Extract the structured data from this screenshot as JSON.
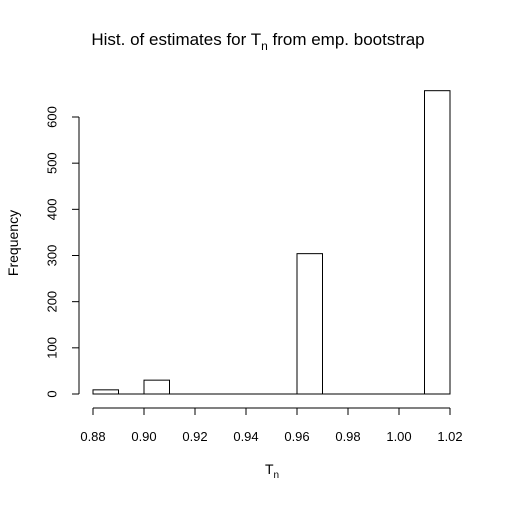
{
  "chart_data": {
    "type": "histogram",
    "title": {
      "prefix": "Hist. of estimates for T",
      "subscript": "n",
      "suffix": " from emp. bootstrap"
    },
    "xlabel": {
      "main": "T",
      "subscript": "n"
    },
    "ylabel": "Frequency",
    "xlim": [
      0.88,
      1.02
    ],
    "ylim": [
      0,
      660
    ],
    "x_ticks": [
      0.88,
      0.9,
      0.92,
      0.94,
      0.96,
      0.98,
      1.0,
      1.02
    ],
    "x_tick_labels": [
      "0.88",
      "0.90",
      "0.92",
      "0.94",
      "0.96",
      "0.98",
      "1.00",
      "1.02"
    ],
    "y_ticks": [
      0,
      100,
      200,
      300,
      400,
      500,
      600
    ],
    "y_tick_labels": [
      "0",
      "100",
      "200",
      "300",
      "400",
      "500",
      "600"
    ],
    "bin_width": 0.01,
    "bins": [
      {
        "x0": 0.88,
        "x1": 0.89,
        "count": 9
      },
      {
        "x0": 0.89,
        "x1": 0.9,
        "count": 0
      },
      {
        "x0": 0.9,
        "x1": 0.91,
        "count": 30
      },
      {
        "x0": 0.91,
        "x1": 0.92,
        "count": 0
      },
      {
        "x0": 0.92,
        "x1": 0.93,
        "count": 0
      },
      {
        "x0": 0.93,
        "x1": 0.94,
        "count": 0
      },
      {
        "x0": 0.94,
        "x1": 0.95,
        "count": 0
      },
      {
        "x0": 0.95,
        "x1": 0.96,
        "count": 0
      },
      {
        "x0": 0.96,
        "x1": 0.97,
        "count": 304
      },
      {
        "x0": 0.97,
        "x1": 0.98,
        "count": 0
      },
      {
        "x0": 0.98,
        "x1": 0.99,
        "count": 0
      },
      {
        "x0": 0.99,
        "x1": 1.0,
        "count": 0
      },
      {
        "x0": 1.0,
        "x1": 1.01,
        "count": 0
      },
      {
        "x0": 1.01,
        "x1": 1.02,
        "count": 657
      }
    ],
    "bar_fill": "#ffffff",
    "bar_stroke": "#000000",
    "grid": false,
    "legend": "none"
  }
}
